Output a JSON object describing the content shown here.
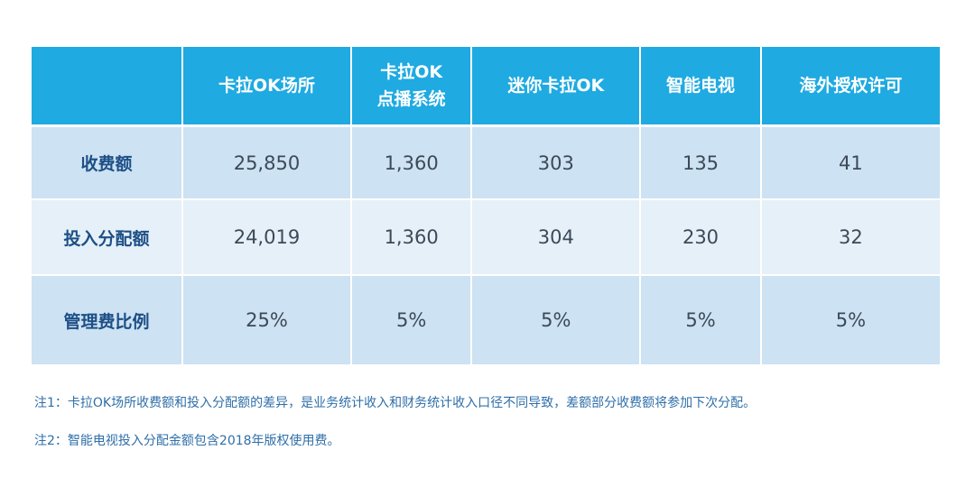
{
  "table": {
    "header_color": "#1faae1",
    "columns": [
      "",
      "卡拉OK场所",
      "卡拉OK\n点播系统",
      "迷你卡拉OK",
      "智能电视",
      "海外授权许可"
    ],
    "columns_split": {
      "c2_line1": "卡拉OK",
      "c2_line2": "点播系统"
    },
    "rows": [
      {
        "label": "收费额",
        "values": [
          "25,850",
          "1,360",
          "303",
          "135",
          "41"
        ]
      },
      {
        "label": "投入分配额",
        "values": [
          "24,019",
          "1,360",
          "304",
          "230",
          "32"
        ]
      },
      {
        "label": "管理费比例",
        "values": [
          "25%",
          "5%",
          "5%",
          "5%",
          "5%"
        ]
      }
    ]
  },
  "notes": [
    "注1：卡拉OK场所收费额和投入分配额的差异，是业务统计收入和财务统计收入口径不同导致，差额部分收费额将参加下次分配。",
    "注2：智能电视投入分配金额包含2018年版权使用费。"
  ]
}
